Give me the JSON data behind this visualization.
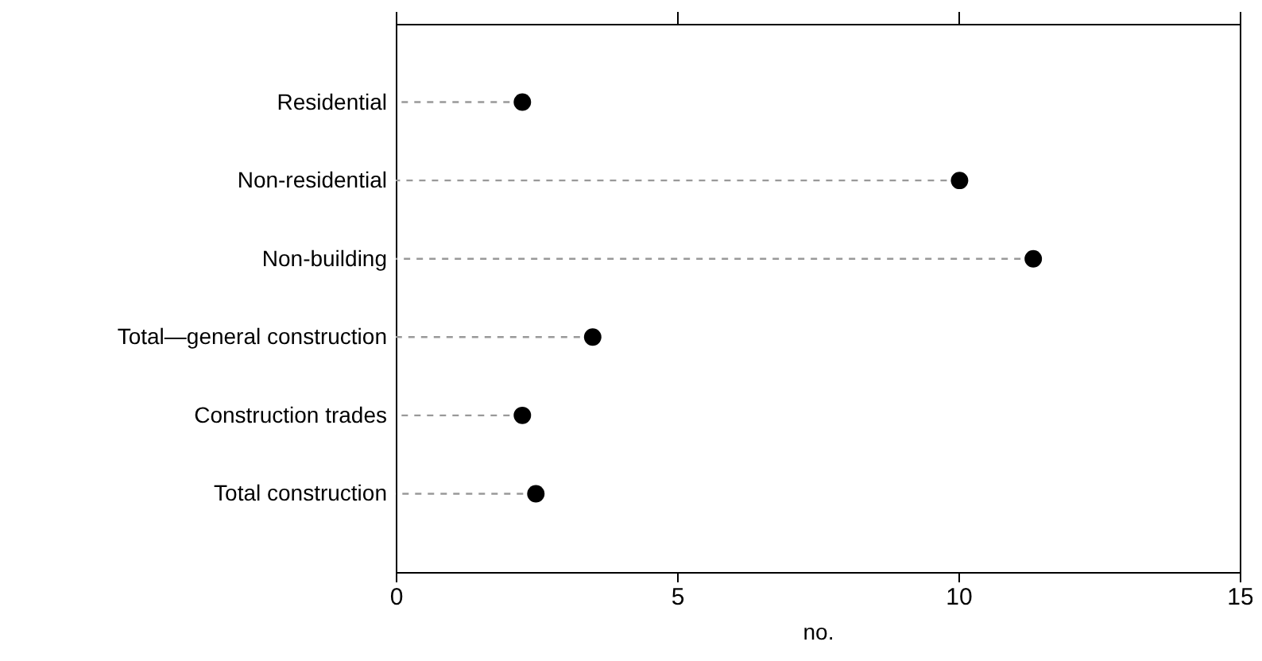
{
  "chart_data": {
    "type": "lollipop",
    "orientation": "horizontal",
    "xlabel": "no.",
    "categories": [
      "Residential",
      "Non-residential",
      "Non-building",
      "Total—general construction",
      "Construction trades",
      "Total construction"
    ],
    "series": [
      {
        "color": "#000000",
        "values": [
          2.25,
          10.02,
          11.33,
          3.5,
          2.25,
          2.49
        ]
      }
    ],
    "xlim": [
      0,
      15
    ],
    "xticks": [
      0,
      5,
      10,
      15
    ],
    "grid": false,
    "marker": "circle",
    "line_style": "dashed"
  }
}
